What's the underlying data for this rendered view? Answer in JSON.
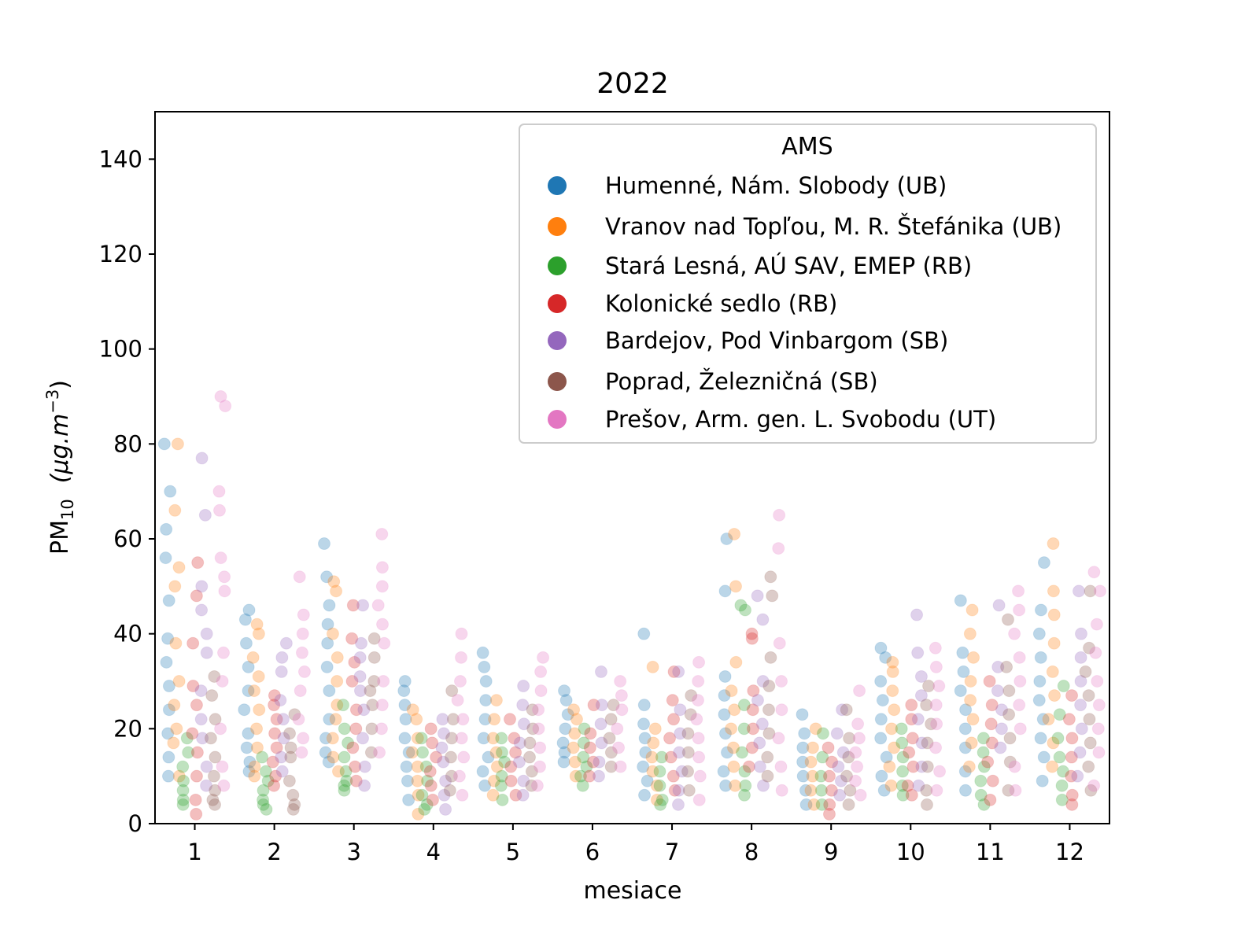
{
  "chart_data": {
    "type": "scatter",
    "subtype": "strip",
    "title": "2022",
    "xlabel": "mesiace",
    "ylabel": {
      "main": "PM",
      "sub": "10",
      "unit_open": "(μg.m",
      "sup": "−3",
      "unit_close": ")"
    },
    "xlim": [
      0.5,
      12.5
    ],
    "ylim": [
      0,
      150
    ],
    "yticks": [
      0,
      20,
      40,
      60,
      80,
      100,
      120,
      140
    ],
    "categories": [
      1,
      2,
      3,
      4,
      5,
      6,
      7,
      8,
      9,
      10,
      11,
      12
    ],
    "legend": {
      "title": "AMS",
      "position": "top-right"
    },
    "alpha": 0.3,
    "series": [
      {
        "name": "Humenné, Nám. Slobody (UB)",
        "color": "#1f77b4",
        "values": [
          [
            80,
            70,
            62,
            56,
            47,
            39,
            34,
            29,
            24,
            19,
            14,
            10
          ],
          [
            45,
            43,
            38,
            33,
            28,
            24,
            19,
            16,
            13,
            11
          ],
          [
            59,
            52,
            46,
            42,
            38,
            33,
            28,
            22,
            18,
            15,
            13
          ],
          [
            30,
            28,
            25,
            22,
            18,
            15,
            12,
            9,
            5
          ],
          [
            36,
            33,
            30,
            26,
            22,
            18,
            14,
            11,
            8
          ],
          [
            28,
            26,
            23,
            20,
            17,
            15,
            13
          ],
          [
            40,
            25,
            21,
            18,
            15,
            12,
            9,
            6
          ],
          [
            60,
            49,
            31,
            27,
            23,
            19,
            15,
            11,
            8
          ],
          [
            23,
            19,
            16,
            13,
            10,
            7,
            4
          ],
          [
            37,
            35,
            30,
            26,
            22,
            18,
            14,
            10,
            7
          ],
          [
            47,
            36,
            32,
            28,
            24,
            20,
            16,
            11,
            7
          ],
          [
            55,
            45,
            40,
            35,
            30,
            26,
            22,
            18,
            14,
            9
          ]
        ]
      },
      {
        "name": "Vranov nad Topľou, M. R. Štefánika (UB)",
        "color": "#ff7f0e",
        "values": [
          [
            80,
            66,
            54,
            50,
            38,
            30,
            25,
            20,
            17,
            10
          ],
          [
            42,
            40,
            35,
            31,
            28,
            24,
            20,
            16,
            12,
            10
          ],
          [
            51,
            49,
            40,
            35,
            30,
            25,
            22,
            18,
            14,
            11
          ],
          [
            24,
            22,
            18,
            15,
            12,
            9,
            6,
            2
          ],
          [
            26,
            22,
            18,
            15,
            12,
            9,
            6
          ],
          [
            24,
            22,
            19,
            16,
            13,
            10
          ],
          [
            33,
            20,
            17,
            14,
            11,
            8,
            5
          ],
          [
            61,
            50,
            34,
            28,
            24,
            20,
            16,
            12,
            8
          ],
          [
            20,
            16,
            13,
            10,
            7,
            4
          ],
          [
            34,
            32,
            28,
            24,
            20,
            16,
            12,
            8
          ],
          [
            45,
            40,
            35,
            30,
            26,
            22,
            17,
            12
          ],
          [
            59,
            49,
            44,
            38,
            32,
            27,
            22,
            17,
            12
          ]
        ]
      },
      {
        "name": "Stará Lesná, AÚ SAV, EMEP (RB)",
        "color": "#2ca02c",
        "values": [
          [
            18,
            15,
            12,
            9,
            7,
            5,
            4
          ],
          [
            14,
            11,
            9,
            7,
            5,
            4,
            3
          ],
          [
            25,
            20,
            17,
            14,
            11,
            9,
            8,
            7
          ],
          [
            18,
            15,
            12,
            9,
            6,
            4,
            3
          ],
          [
            18,
            15,
            13,
            10,
            8,
            5
          ],
          [
            20,
            17,
            14,
            12,
            10,
            8
          ],
          [
            14,
            11,
            8,
            5,
            4
          ],
          [
            46,
            45,
            25,
            20,
            15,
            11,
            8,
            6
          ],
          [
            19,
            14,
            10,
            7,
            4
          ],
          [
            20,
            17,
            14,
            11,
            8,
            6
          ],
          [
            18,
            15,
            12,
            9,
            6,
            4
          ],
          [
            29,
            23,
            18,
            14,
            11,
            8,
            5
          ]
        ]
      },
      {
        "name": "Kolonické sedlo (RB)",
        "color": "#d62728",
        "values": [
          [
            55,
            48,
            38,
            29,
            25,
            19,
            15,
            10,
            5,
            2
          ],
          [
            27,
            25,
            22,
            19,
            16,
            13,
            10,
            8
          ],
          [
            46,
            39,
            34,
            30,
            24,
            20,
            16,
            12,
            9
          ],
          [
            20,
            17,
            14,
            11,
            8,
            5
          ],
          [
            22,
            18,
            15,
            12,
            9,
            6
          ],
          [
            25,
            19,
            16,
            13,
            10
          ],
          [
            32,
            26,
            22,
            18,
            14,
            10,
            7
          ],
          [
            40,
            39,
            28,
            24,
            20,
            16,
            12
          ],
          [
            16,
            13,
            10,
            7,
            4,
            2
          ],
          [
            25,
            22,
            18,
            15,
            12,
            8,
            6
          ],
          [
            30,
            25,
            21,
            17,
            13,
            9,
            5
          ],
          [
            27,
            22,
            18,
            14,
            10,
            6,
            4
          ]
        ]
      },
      {
        "name": "Bardejov, Pod Vinbargom (SB)",
        "color": "#9467bd",
        "values": [
          [
            77,
            65,
            50,
            45,
            40,
            36,
            28,
            22,
            18,
            12,
            8
          ],
          [
            38,
            35,
            32,
            26,
            22,
            18,
            14,
            11
          ],
          [
            46,
            38,
            35,
            31,
            28,
            24,
            18,
            12,
            8
          ],
          [
            22,
            19,
            16,
            13,
            9,
            6,
            3
          ],
          [
            29,
            25,
            21,
            17,
            13,
            9,
            6
          ],
          [
            32,
            25,
            21,
            17,
            13,
            10
          ],
          [
            32,
            24,
            19,
            15,
            11,
            7,
            4
          ],
          [
            48,
            43,
            30,
            26,
            21,
            17,
            12,
            8
          ],
          [
            24,
            19,
            15,
            12,
            9,
            6
          ],
          [
            44,
            36,
            31,
            27,
            22,
            17,
            12,
            8
          ],
          [
            46,
            33,
            28,
            24,
            20,
            16
          ],
          [
            49,
            40,
            35,
            30,
            25,
            20,
            15,
            10
          ]
        ]
      },
      {
        "name": "Poprad, Železničná (SB)",
        "color": "#8c564b",
        "values": [
          [
            31,
            27,
            22,
            18,
            14,
            10,
            7,
            5,
            4
          ],
          [
            23,
            19,
            16,
            14,
            9,
            6,
            4,
            3
          ],
          [
            39,
            35,
            30,
            28,
            25,
            20,
            15
          ],
          [
            28,
            22,
            18,
            14,
            10,
            7
          ],
          [
            24,
            20,
            17,
            14,
            11,
            8
          ],
          [
            25,
            22,
            18,
            15,
            12
          ],
          [
            27,
            23,
            19,
            15,
            11,
            7
          ],
          [
            52,
            48,
            35,
            29,
            24,
            19,
            14,
            10
          ],
          [
            24,
            18,
            14,
            10,
            7,
            4
          ],
          [
            29,
            25,
            21,
            17,
            12,
            7,
            4
          ],
          [
            43,
            33,
            28,
            23,
            18,
            13,
            7
          ],
          [
            49,
            37,
            32,
            27,
            22,
            17,
            12,
            7
          ]
        ]
      },
      {
        "name": "Prešov, Arm. gen. L. Svobodu (UT)",
        "color": "#e377c2",
        "values": [
          [
            90,
            88,
            70,
            66,
            56,
            52,
            49,
            36,
            30,
            20,
            12,
            8
          ],
          [
            52,
            44,
            40,
            36,
            32,
            28,
            22,
            18,
            15
          ],
          [
            61,
            54,
            50,
            46,
            42,
            38,
            30,
            25,
            20,
            15
          ],
          [
            40,
            35,
            30,
            26,
            22,
            18,
            14,
            10,
            6
          ],
          [
            35,
            32,
            28,
            24,
            20,
            16,
            12,
            8
          ],
          [
            30,
            27,
            24,
            20,
            16,
            12
          ],
          [
            34,
            30,
            26,
            22,
            18,
            14,
            10,
            5
          ],
          [
            65,
            58,
            38,
            30,
            24,
            18,
            12,
            7
          ],
          [
            28,
            21,
            18,
            15,
            12,
            9,
            6
          ],
          [
            37,
            33,
            29,
            25,
            21,
            16,
            11,
            7
          ],
          [
            49,
            45,
            40,
            35,
            30,
            25,
            20,
            12,
            7
          ],
          [
            53,
            49,
            42,
            36,
            30,
            25,
            20,
            15,
            8
          ]
        ]
      }
    ]
  }
}
